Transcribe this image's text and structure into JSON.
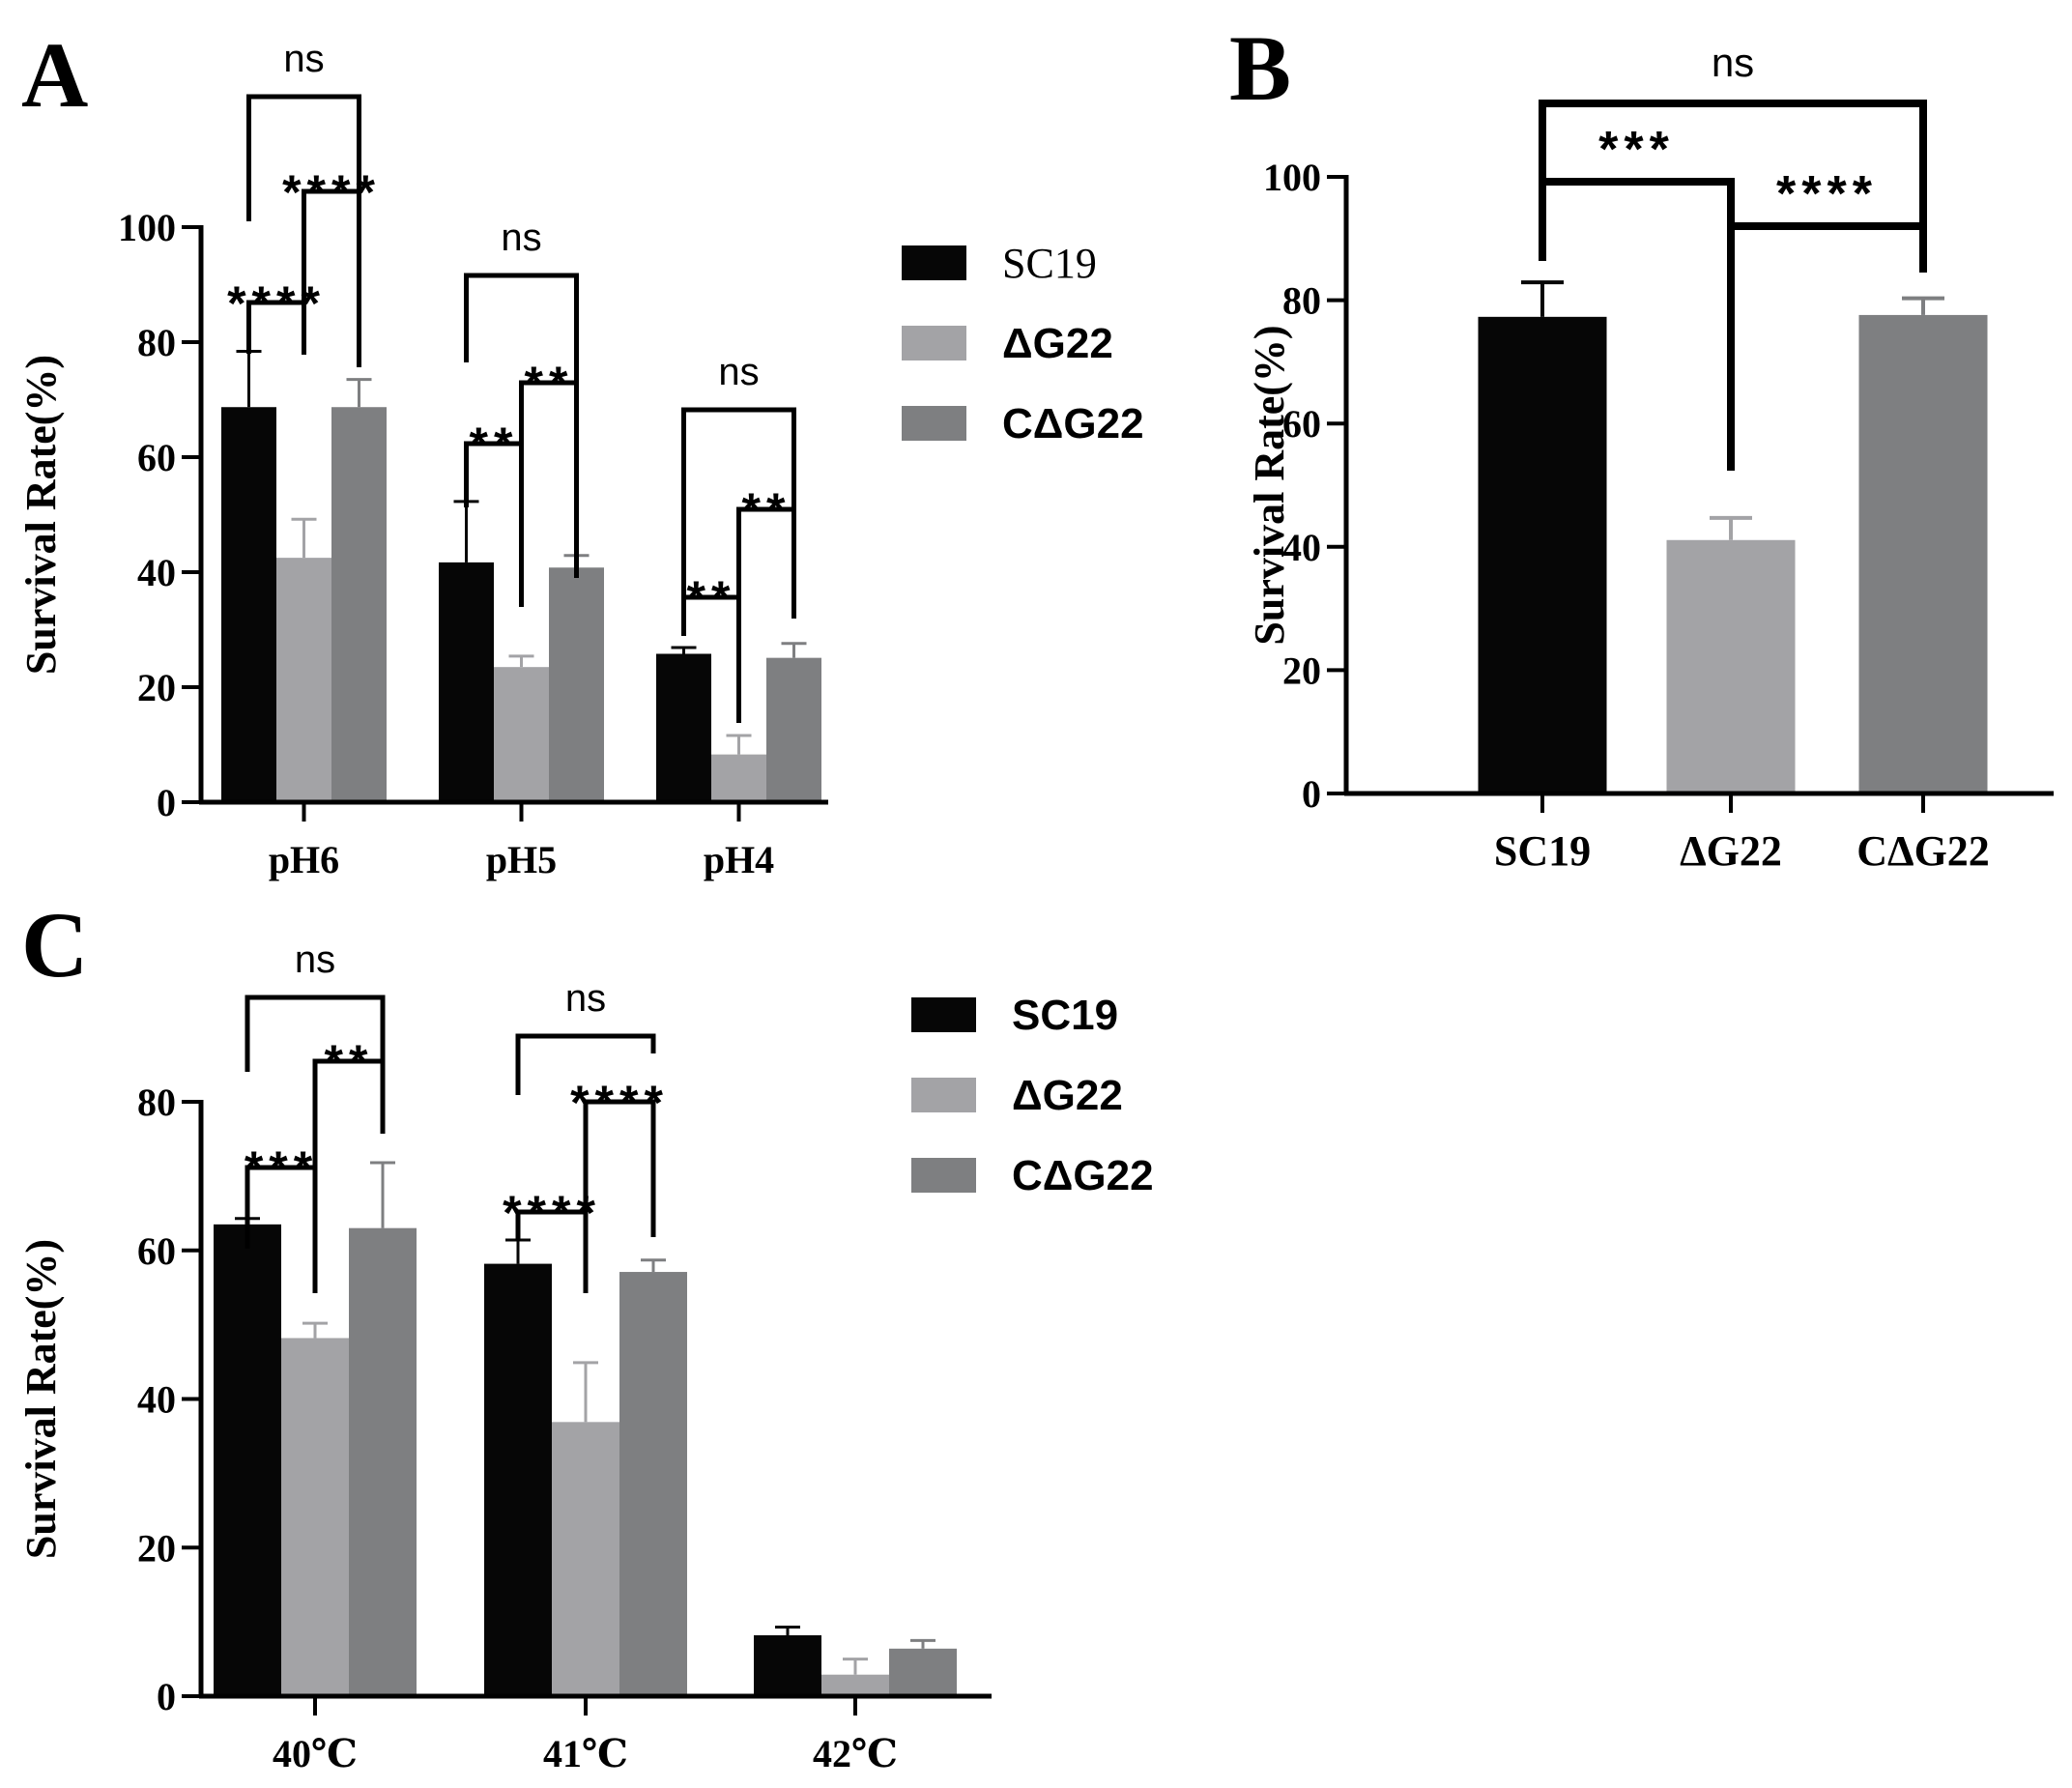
{
  "colors": {
    "SC19": "#060606",
    "dG22": "#a3a3a6",
    "CdG22": "#7e7f81",
    "axis": "#000000"
  },
  "chart_data": [
    {
      "panel": "A",
      "type": "bar",
      "ylabel": "Survival Rate(%)",
      "xlabel": "",
      "ylim": [
        0,
        100
      ],
      "yticks": [
        "0",
        "20",
        "40",
        "60",
        "80",
        "100"
      ],
      "categories": [
        "pH6",
        "pH5",
        "pH4"
      ],
      "legend": [
        "SC19",
        "ΔG22",
        "CΔG22"
      ],
      "legend_position": "right",
      "series": [
        {
          "name": "SC19",
          "values": [
            68.7,
            41.7,
            25.8
          ],
          "errors": [
            9.7,
            10.6,
            1.1
          ]
        },
        {
          "name": "ΔG22",
          "values": [
            42.5,
            23.5,
            8.3
          ],
          "errors": [
            6.7,
            1.9,
            3.3
          ]
        },
        {
          "name": "CΔG22",
          "values": [
            68.7,
            40.8,
            25.1
          ],
          "errors": [
            4.8,
            2.1,
            2.5
          ]
        }
      ],
      "annotations": [
        {
          "text": "****",
          "from": [
            0,
            0
          ],
          "to": [
            0,
            1
          ]
        },
        {
          "text": "****",
          "from": [
            0,
            1
          ],
          "to": [
            0,
            2
          ]
        },
        {
          "text": "ns",
          "from": [
            0,
            0
          ],
          "to": [
            0,
            2
          ]
        },
        {
          "text": "**",
          "from": [
            1,
            0
          ],
          "to": [
            1,
            1
          ]
        },
        {
          "text": "**",
          "from": [
            1,
            1
          ],
          "to": [
            1,
            2
          ]
        },
        {
          "text": "ns",
          "from": [
            1,
            0
          ],
          "to": [
            1,
            2
          ]
        },
        {
          "text": "**",
          "from": [
            2,
            0
          ],
          "to": [
            2,
            1
          ]
        },
        {
          "text": "**",
          "from": [
            2,
            1
          ],
          "to": [
            2,
            2
          ]
        },
        {
          "text": "ns",
          "from": [
            2,
            0
          ],
          "to": [
            2,
            2
          ]
        }
      ]
    },
    {
      "panel": "B",
      "type": "bar",
      "ylabel": "Survival Rate(%)",
      "xlabel": "",
      "ylim": [
        0,
        100
      ],
      "yticks": [
        "0",
        "20",
        "40",
        "60",
        "80",
        "100"
      ],
      "categories": [
        "SC19",
        "ΔG22",
        "CΔG22"
      ],
      "values": [
        77.3,
        41.1,
        77.6
      ],
      "errors": [
        5.6,
        3.6,
        2.7
      ],
      "annotations": [
        {
          "text": "***",
          "from": 0,
          "to": 1
        },
        {
          "text": "****",
          "from": 1,
          "to": 2
        },
        {
          "text": "ns",
          "from": 0,
          "to": 2
        }
      ]
    },
    {
      "panel": "C",
      "type": "bar",
      "ylabel": "Survival Rate(%)",
      "xlabel": "",
      "ylim": [
        0,
        80
      ],
      "yticks": [
        "0",
        "20",
        "40",
        "60",
        "80"
      ],
      "categories": [
        "40℃",
        "41℃",
        "42℃"
      ],
      "legend": [
        "SC19",
        "ΔG22",
        "CΔG22"
      ],
      "legend_position": "right",
      "series": [
        {
          "name": "SC19",
          "values": [
            63.5,
            58.2,
            8.2
          ],
          "errors": [
            0.8,
            3.2,
            1.1
          ]
        },
        {
          "name": "ΔG22",
          "values": [
            48.2,
            36.9,
            2.9
          ],
          "errors": [
            2.0,
            8.0,
            2.1
          ]
        },
        {
          "name": "CΔG22",
          "values": [
            63.0,
            57.1,
            6.4
          ],
          "errors": [
            8.8,
            1.6,
            1.1
          ]
        }
      ],
      "annotations": [
        {
          "text": "***",
          "from": [
            0,
            0
          ],
          "to": [
            0,
            1
          ]
        },
        {
          "text": "**",
          "from": [
            0,
            1
          ],
          "to": [
            0,
            2
          ]
        },
        {
          "text": "ns",
          "from": [
            0,
            0
          ],
          "to": [
            0,
            2
          ]
        },
        {
          "text": "****",
          "from": [
            1,
            0
          ],
          "to": [
            1,
            1
          ]
        },
        {
          "text": "****",
          "from": [
            1,
            1
          ],
          "to": [
            1,
            2
          ]
        },
        {
          "text": "ns",
          "from": [
            1,
            0
          ],
          "to": [
            1,
            2
          ]
        }
      ]
    }
  ]
}
